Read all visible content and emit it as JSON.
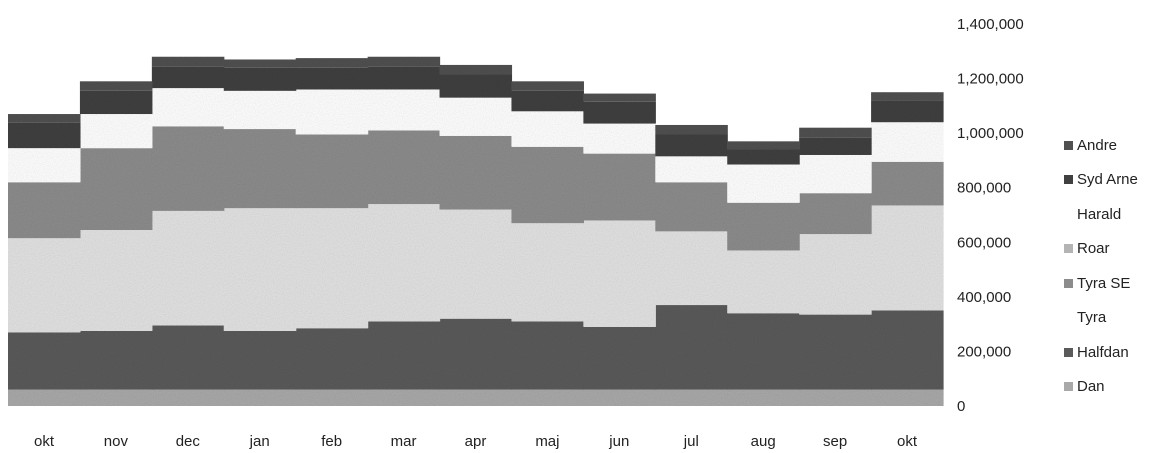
{
  "chart_data": {
    "type": "area",
    "stacked": true,
    "stepped": true,
    "categories": [
      "okt",
      "nov",
      "dec",
      "jan",
      "feb",
      "mar",
      "apr",
      "maj",
      "jun",
      "jul",
      "aug",
      "sep",
      "okt"
    ],
    "yaxis_position": "right",
    "ylim": [
      0,
      1400000
    ],
    "yticks": [
      "0",
      "200,000",
      "400,000",
      "600,000",
      "800,000",
      "1,000,000",
      "1,200,000",
      "1,400,000"
    ],
    "legend_position": "right",
    "series": [
      {
        "name": "Dan",
        "color": "#a9a9a9",
        "values": [
          60000,
          60000,
          60000,
          60000,
          60000,
          60000,
          60000,
          60000,
          60000,
          60000,
          60000,
          60000,
          60000
        ]
      },
      {
        "name": "Halfdan",
        "color": "#5a5a5a",
        "values": [
          210000,
          215000,
          235000,
          215000,
          225000,
          250000,
          260000,
          250000,
          230000,
          310000,
          280000,
          275000,
          290000
        ]
      },
      {
        "name": "Tyra",
        "color": "#e2e2e2",
        "values": [
          345000,
          370000,
          420000,
          450000,
          440000,
          430000,
          400000,
          360000,
          390000,
          270000,
          230000,
          295000,
          385000
        ]
      },
      {
        "name": "Tyra SE",
        "color": "#8c8c8c",
        "values": [
          205000,
          300000,
          310000,
          290000,
          270000,
          270000,
          270000,
          280000,
          245000,
          180000,
          175000,
          150000,
          160000
        ]
      },
      {
        "name": "Roar",
        "color": "#b4b4b4",
        "values": [
          0,
          0,
          0,
          0,
          0,
          0,
          0,
          0,
          0,
          0,
          0,
          0,
          0
        ]
      },
      {
        "name": "Harald",
        "color": "#ffffff",
        "values": [
          125000,
          125000,
          140000,
          140000,
          165000,
          150000,
          140000,
          130000,
          110000,
          95000,
          140000,
          140000,
          145000
        ]
      },
      {
        "name": "Syd Arne",
        "color": "#404040",
        "values": [
          95000,
          85000,
          80000,
          85000,
          80000,
          85000,
          85000,
          75000,
          80000,
          80000,
          55000,
          65000,
          80000
        ]
      },
      {
        "name": "Andre",
        "color": "#505050",
        "values": [
          30000,
          35000,
          35000,
          30000,
          35000,
          35000,
          35000,
          35000,
          30000,
          35000,
          30000,
          35000,
          30000
        ]
      }
    ]
  },
  "legend": [
    "Andre",
    "Syd Arne",
    "Harald",
    "Roar",
    "Tyra SE",
    "Tyra",
    "Halfdan",
    "Dan"
  ]
}
